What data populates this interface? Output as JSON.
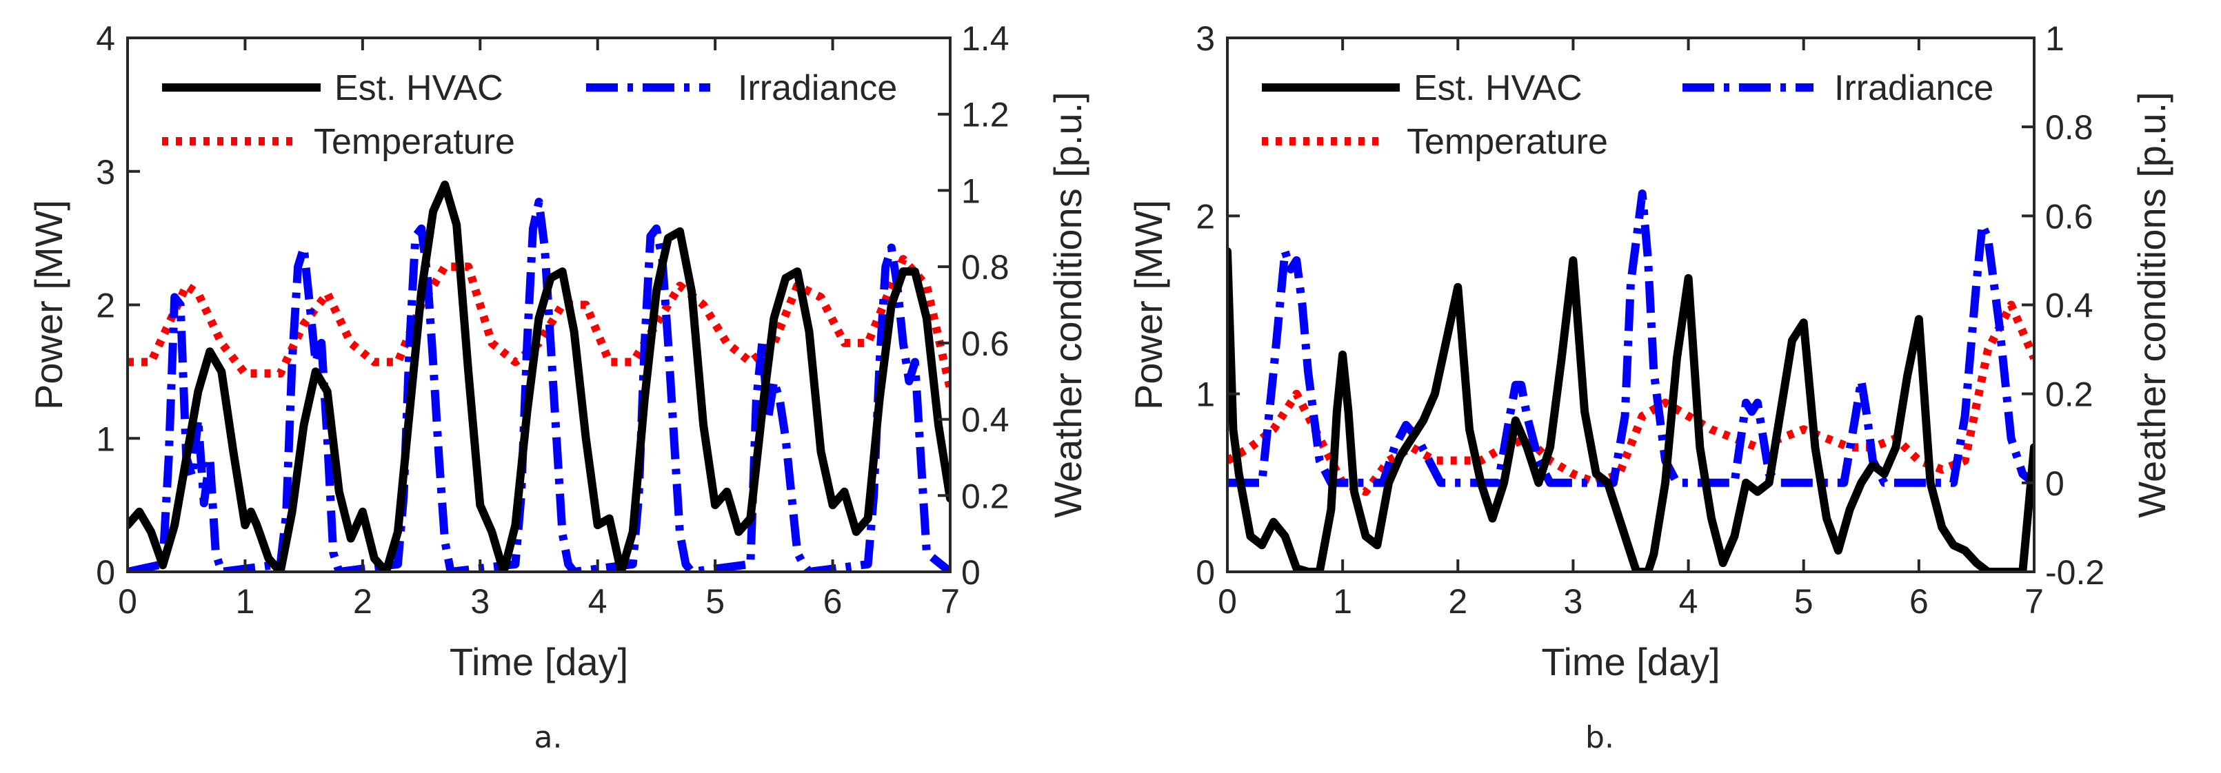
{
  "chart_data": [
    {
      "type": "line",
      "caption": "a.",
      "xlabel": "Time [day]",
      "ylabel": "Power [MW]",
      "y2label": "Weather conditions [p.u.]",
      "xlim": [
        0,
        7
      ],
      "ylim": [
        0,
        4
      ],
      "y2lim": [
        0,
        1.4
      ],
      "xticks": [
        "0",
        "1",
        "2",
        "3",
        "4",
        "5",
        "6",
        "7"
      ],
      "yticks": [
        "0",
        "1",
        "2",
        "3",
        "4"
      ],
      "y2ticks": [
        "0",
        "0.2",
        "0.4",
        "0.6",
        "0.8",
        "1",
        "1.2",
        "1.4"
      ],
      "legend": [
        "Est. HVAC",
        "Irradiance",
        "Temperature"
      ],
      "legend_position": "top",
      "series": [
        {
          "name": "Est. HVAC",
          "axis": "left",
          "color": "#000000",
          "style": "solid",
          "x": [
            0,
            0.1,
            0.2,
            0.3,
            0.4,
            0.5,
            0.6,
            0.7,
            0.8,
            0.9,
            1.0,
            1.05,
            1.1,
            1.2,
            1.3,
            1.4,
            1.5,
            1.6,
            1.7,
            1.8,
            1.9,
            2.0,
            2.1,
            2.2,
            2.3,
            2.4,
            2.5,
            2.6,
            2.7,
            2.8,
            2.9,
            3.0,
            3.1,
            3.2,
            3.3,
            3.4,
            3.5,
            3.6,
            3.7,
            3.8,
            3.9,
            4.0,
            4.1,
            4.2,
            4.3,
            4.4,
            4.5,
            4.6,
            4.7,
            4.8,
            4.9,
            5.0,
            5.1,
            5.2,
            5.3,
            5.4,
            5.5,
            5.6,
            5.7,
            5.8,
            5.9,
            6.0,
            6.1,
            6.2,
            6.3,
            6.4,
            6.5,
            6.6,
            6.7,
            6.8,
            6.9,
            7.0
          ],
          "values": [
            0.35,
            0.45,
            0.3,
            0.05,
            0.35,
            0.85,
            1.35,
            1.65,
            1.5,
            0.9,
            0.35,
            0.45,
            0.35,
            0.1,
            0.0,
            0.45,
            1.1,
            1.5,
            1.35,
            0.6,
            0.25,
            0.45,
            0.1,
            0.0,
            0.3,
            1.2,
            2.1,
            2.7,
            2.9,
            2.6,
            1.5,
            0.5,
            0.3,
            0.0,
            0.35,
            1.2,
            1.9,
            2.2,
            2.25,
            1.8,
            1.0,
            0.35,
            0.4,
            0.0,
            0.3,
            1.3,
            2.1,
            2.5,
            2.55,
            2.1,
            1.1,
            0.5,
            0.6,
            0.3,
            0.4,
            1.2,
            1.9,
            2.2,
            2.25,
            1.8,
            0.9,
            0.5,
            0.6,
            0.3,
            0.4,
            1.3,
            2.0,
            2.25,
            2.25,
            1.9,
            1.1,
            0.55
          ]
        },
        {
          "name": "Irradiance",
          "axis": "right",
          "color": "#0000ff",
          "style": "dashdot",
          "x": [
            0,
            0.3,
            0.35,
            0.4,
            0.45,
            0.5,
            0.55,
            0.6,
            0.65,
            0.7,
            0.75,
            0.8,
            1.3,
            1.35,
            1.4,
            1.45,
            1.5,
            1.55,
            1.6,
            1.65,
            1.7,
            1.75,
            1.8,
            2.3,
            2.35,
            2.4,
            2.45,
            2.5,
            2.55,
            2.6,
            2.65,
            2.7,
            2.75,
            3.3,
            3.35,
            3.4,
            3.45,
            3.5,
            3.55,
            3.6,
            3.65,
            3.7,
            3.75,
            3.8,
            4.3,
            4.35,
            4.4,
            4.45,
            4.5,
            4.55,
            4.6,
            4.65,
            4.7,
            4.75,
            4.8,
            5.3,
            5.35,
            5.4,
            5.45,
            5.5,
            5.55,
            5.6,
            5.65,
            5.7,
            5.75,
            5.8,
            6.3,
            6.35,
            6.4,
            6.45,
            6.5,
            6.55,
            6.6,
            6.65,
            6.7,
            6.75,
            6.8,
            7.0
          ],
          "values": [
            0,
            0.02,
            0.3,
            0.72,
            0.7,
            0.3,
            0.25,
            0.4,
            0.18,
            0.3,
            0.05,
            0,
            0.02,
            0.15,
            0.55,
            0.8,
            0.85,
            0.7,
            0.55,
            0.6,
            0.35,
            0.05,
            0,
            0.02,
            0.2,
            0.6,
            0.88,
            0.9,
            0.78,
            0.55,
            0.3,
            0.08,
            0,
            0.02,
            0.2,
            0.6,
            0.9,
            0.97,
            0.85,
            0.6,
            0.35,
            0.1,
            0.02,
            0,
            0.02,
            0.2,
            0.6,
            0.88,
            0.9,
            0.82,
            0.6,
            0.35,
            0.1,
            0.02,
            0,
            0.02,
            0.45,
            0.6,
            0.4,
            0.5,
            0.45,
            0.35,
            0.2,
            0.05,
            0.02,
            0,
            0.02,
            0.2,
            0.55,
            0.8,
            0.85,
            0.75,
            0.6,
            0.5,
            0.55,
            0.3,
            0.05,
            0
          ]
        },
        {
          "name": "Temperature",
          "axis": "right",
          "color": "#ff0000",
          "style": "dotted",
          "x": [
            0,
            0.2,
            0.35,
            0.5,
            0.6,
            0.8,
            1.0,
            1.3,
            1.5,
            1.7,
            1.9,
            2.1,
            2.3,
            2.5,
            2.7,
            2.9,
            3.1,
            3.3,
            3.5,
            3.7,
            3.9,
            4.1,
            4.3,
            4.5,
            4.7,
            4.9,
            5.1,
            5.3,
            5.5,
            5.7,
            5.9,
            6.1,
            6.3,
            6.5,
            6.6,
            6.8,
            7.0
          ],
          "values": [
            0.55,
            0.55,
            0.65,
            0.75,
            0.73,
            0.6,
            0.52,
            0.52,
            0.65,
            0.73,
            0.6,
            0.55,
            0.55,
            0.7,
            0.8,
            0.8,
            0.6,
            0.55,
            0.6,
            0.7,
            0.7,
            0.55,
            0.55,
            0.65,
            0.75,
            0.7,
            0.6,
            0.55,
            0.6,
            0.75,
            0.72,
            0.6,
            0.6,
            0.75,
            0.82,
            0.75,
            0.48
          ]
        }
      ]
    },
    {
      "type": "line",
      "caption": "b.",
      "xlabel": "Time [day]",
      "ylabel": "Power [MW]",
      "y2label": "Weather conditions [p.u.]",
      "xlim": [
        0,
        7
      ],
      "ylim": [
        0,
        3
      ],
      "y2lim": [
        -0.2,
        1
      ],
      "xticks": [
        "0",
        "1",
        "2",
        "3",
        "4",
        "5",
        "6",
        "7"
      ],
      "yticks": [
        "0",
        "1",
        "2",
        "3"
      ],
      "y2ticks": [
        "-0.2",
        "0",
        "0.2",
        "0.4",
        "0.6",
        "0.8",
        "1"
      ],
      "legend": [
        "Est. HVAC",
        "Irradiance",
        "Temperature"
      ],
      "legend_position": "top",
      "series": [
        {
          "name": "Est. HVAC",
          "axis": "left",
          "color": "#000000",
          "style": "solid",
          "x": [
            0,
            0.05,
            0.1,
            0.2,
            0.3,
            0.4,
            0.5,
            0.6,
            0.7,
            0.8,
            0.9,
            0.95,
            1.0,
            1.05,
            1.1,
            1.2,
            1.3,
            1.4,
            1.5,
            1.6,
            1.7,
            1.8,
            1.9,
            2.0,
            2.1,
            2.2,
            2.3,
            2.4,
            2.5,
            2.6,
            2.7,
            2.8,
            2.9,
            3.0,
            3.1,
            3.2,
            3.3,
            3.4,
            3.5,
            3.55,
            3.6,
            3.65,
            3.7,
            3.8,
            3.9,
            4.0,
            4.1,
            4.2,
            4.3,
            4.4,
            4.5,
            4.6,
            4.7,
            4.8,
            4.9,
            5.0,
            5.1,
            5.2,
            5.3,
            5.4,
            5.5,
            5.6,
            5.7,
            5.8,
            5.9,
            6.0,
            6.1,
            6.2,
            6.3,
            6.4,
            6.5,
            6.6,
            6.9,
            7.0
          ],
          "values": [
            1.8,
            0.8,
            0.55,
            0.2,
            0.15,
            0.28,
            0.2,
            0.02,
            0.0,
            0.0,
            0.35,
            0.9,
            1.22,
            0.9,
            0.45,
            0.2,
            0.15,
            0.5,
            0.65,
            0.75,
            0.85,
            1.0,
            1.3,
            1.6,
            0.8,
            0.5,
            0.3,
            0.5,
            0.85,
            0.7,
            0.5,
            0.7,
            1.2,
            1.75,
            0.9,
            0.55,
            0.5,
            0.3,
            0.1,
            0.0,
            0.0,
            0.0,
            0.1,
            0.5,
            1.2,
            1.65,
            0.7,
            0.3,
            0.05,
            0.2,
            0.5,
            0.45,
            0.5,
            0.9,
            1.3,
            1.4,
            0.7,
            0.3,
            0.12,
            0.35,
            0.5,
            0.6,
            0.55,
            0.7,
            1.1,
            1.42,
            0.5,
            0.25,
            0.15,
            0.12,
            0.05,
            0.0,
            0.0,
            0.7
          ]
        },
        {
          "name": "Irradiance",
          "axis": "right",
          "color": "#0000ff",
          "style": "dashdot",
          "x": [
            0,
            0.3,
            0.4,
            0.5,
            0.55,
            0.6,
            0.65,
            0.7,
            0.8,
            0.9,
            1.35,
            1.45,
            1.55,
            1.65,
            1.75,
            1.85,
            2.35,
            2.45,
            2.5,
            2.55,
            2.6,
            2.7,
            2.8,
            3.35,
            3.45,
            3.5,
            3.55,
            3.6,
            3.65,
            3.7,
            3.8,
            3.9,
            4.4,
            4.5,
            4.55,
            4.6,
            4.65,
            4.7,
            4.8,
            5.35,
            5.45,
            5.5,
            5.55,
            5.6,
            5.7,
            6.3,
            6.4,
            6.5,
            6.55,
            6.6,
            6.7,
            6.8,
            6.9,
            7.0
          ],
          "values": [
            0,
            0.0,
            0.25,
            0.52,
            0.48,
            0.5,
            0.4,
            0.25,
            0.05,
            0,
            0.0,
            0.08,
            0.13,
            0.1,
            0.05,
            0,
            0.0,
            0.15,
            0.22,
            0.22,
            0.15,
            0.05,
            0,
            0.0,
            0.15,
            0.45,
            0.55,
            0.65,
            0.5,
            0.25,
            0.05,
            0,
            0.0,
            0.18,
            0.16,
            0.18,
            0.1,
            0.02,
            0,
            0.0,
            0.15,
            0.23,
            0.15,
            0.05,
            0,
            0.0,
            0.15,
            0.45,
            0.58,
            0.55,
            0.35,
            0.1,
            0.02,
            0
          ]
        },
        {
          "name": "Temperature",
          "axis": "right",
          "color": "#ff0000",
          "style": "dotted",
          "x": [
            0,
            0.2,
            0.4,
            0.6,
            0.8,
            1.0,
            1.2,
            1.4,
            1.6,
            1.8,
            2.0,
            2.2,
            2.4,
            2.6,
            2.8,
            3.0,
            3.2,
            3.4,
            3.6,
            3.8,
            4.0,
            4.2,
            4.4,
            4.6,
            4.8,
            5.0,
            5.2,
            5.4,
            5.6,
            5.8,
            6.0,
            6.2,
            6.4,
            6.6,
            6.8,
            7.0
          ],
          "values": [
            0.05,
            0.08,
            0.12,
            0.2,
            0.1,
            0.0,
            -0.02,
            0.05,
            0.08,
            0.05,
            0.05,
            0.05,
            0.08,
            0.1,
            0.05,
            0.02,
            0.0,
            0.02,
            0.15,
            0.18,
            0.15,
            0.12,
            0.1,
            0.08,
            0.1,
            0.12,
            0.1,
            0.08,
            0.08,
            0.1,
            0.05,
            0.03,
            0.05,
            0.3,
            0.4,
            0.28
          ]
        }
      ]
    }
  ]
}
